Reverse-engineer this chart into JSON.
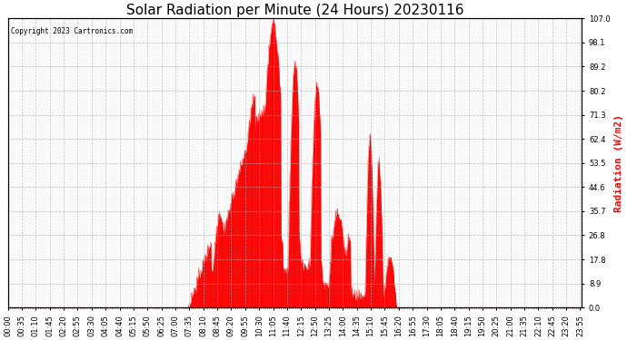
{
  "title": "Solar Radiation per Minute (24 Hours) 20230116",
  "ylabel": "Radiation (W/m2)",
  "ylabel_color": "#ff0000",
  "copyright_text": "Copyright 2023 Cartronics.com",
  "background_color": "#ffffff",
  "fill_color": "#ff0000",
  "line_color": "#ff0000",
  "zero_line_color": "#ff0000",
  "grid_color": "#aaaaaa",
  "ylim": [
    0.0,
    107.0
  ],
  "yticks": [
    0.0,
    8.9,
    17.8,
    26.8,
    35.7,
    44.6,
    53.5,
    62.4,
    71.3,
    80.2,
    89.2,
    98.1,
    107.0
  ],
  "total_minutes": 1440,
  "xtick_interval": 5,
  "xtick_label_interval": 35,
  "title_fontsize": 11,
  "axis_fontsize": 6,
  "ylabel_fontsize": 8,
  "figwidth": 6.9,
  "figheight": 3.75,
  "dpi": 100
}
